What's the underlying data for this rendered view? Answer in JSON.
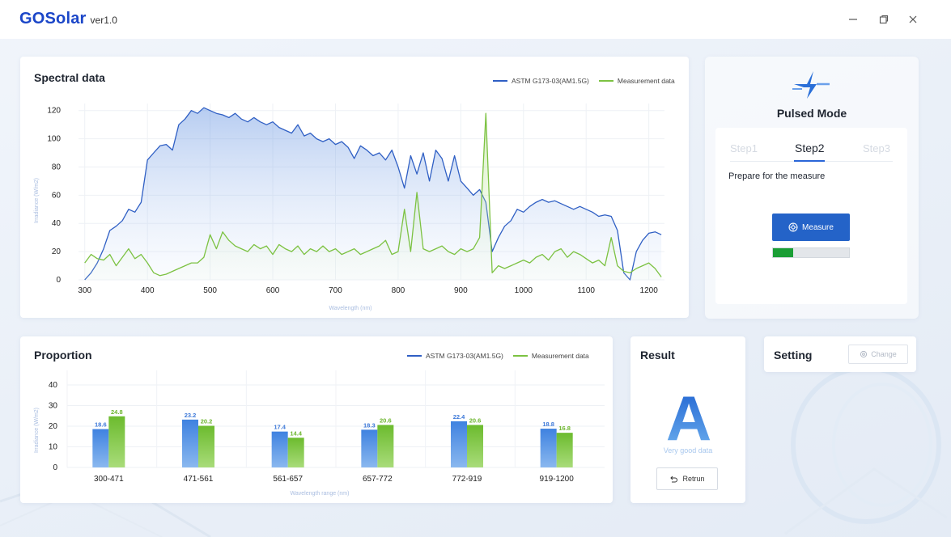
{
  "app": {
    "name": "GOSolar",
    "version": "ver1.0"
  },
  "window_controls": {
    "minimize": "—",
    "maximize": "⧉",
    "close": "✕"
  },
  "spectral": {
    "title": "Spectral data",
    "legend": [
      "ASTM G173-03(AM1.5G)",
      "Measurement data"
    ],
    "xlabel": "Wavelength (nm)",
    "ylabel": "Irradiance (W/m2)",
    "yticks": [
      "0",
      "20",
      "40",
      "60",
      "80",
      "100",
      "120"
    ],
    "xticks": [
      "300",
      "400",
      "500",
      "600",
      "700",
      "800",
      "900",
      "1000",
      "1100",
      "1200"
    ]
  },
  "proportion": {
    "title": "Proportion",
    "legend": [
      "ASTM G173-03(AM1.5G)",
      "Measurement data"
    ],
    "xlabel": "Wavelength range (nm)",
    "ylabel": "Irradiance (W/m2)",
    "yticks": [
      "0",
      "10",
      "20",
      "30",
      "40"
    ]
  },
  "mode": {
    "title": "Pulsed Mode",
    "steps": [
      "Step1",
      "Step2",
      "Step3"
    ],
    "active_step": 1,
    "instruction": "Prepare for the measure",
    "measure_label": "Measure",
    "progress": 0.27
  },
  "result": {
    "title": "Result",
    "grade": "A",
    "grade_text": "Very good data",
    "return_label": "Retrun"
  },
  "setting": {
    "title": "Setting",
    "change_label": "Change"
  },
  "colors": {
    "astm": "#2f5fc4",
    "measurement": "#7cc242",
    "accent": "#2463c8",
    "brand": "#1b46c8"
  },
  "chart_data": [
    {
      "type": "area",
      "title": "Spectral data",
      "xlabel": "Wavelength (nm)",
      "ylabel": "Irradiance (W/m2)",
      "xlim": [
        290,
        1225
      ],
      "ylim": [
        0,
        125
      ],
      "series": [
        {
          "name": "ASTM G173-03(AM1.5G)",
          "x": [
            300,
            310,
            320,
            330,
            340,
            350,
            360,
            370,
            380,
            390,
            400,
            410,
            420,
            430,
            440,
            450,
            460,
            470,
            480,
            490,
            500,
            510,
            520,
            530,
            540,
            550,
            560,
            570,
            580,
            590,
            600,
            610,
            620,
            630,
            640,
            650,
            660,
            670,
            680,
            690,
            700,
            710,
            720,
            730,
            740,
            750,
            760,
            770,
            780,
            790,
            800,
            810,
            820,
            830,
            840,
            850,
            860,
            870,
            880,
            890,
            900,
            910,
            920,
            930,
            940,
            950,
            960,
            970,
            980,
            990,
            1000,
            1010,
            1020,
            1030,
            1040,
            1050,
            1060,
            1070,
            1080,
            1090,
            1100,
            1110,
            1120,
            1130,
            1140,
            1150,
            1160,
            1170,
            1180,
            1190,
            1200,
            1210,
            1220
          ],
          "y": [
            0,
            5,
            12,
            22,
            35,
            38,
            42,
            50,
            48,
            55,
            85,
            90,
            95,
            96,
            92,
            110,
            114,
            120,
            118,
            122,
            120,
            118,
            117,
            115,
            118,
            114,
            112,
            115,
            112,
            110,
            112,
            108,
            106,
            104,
            110,
            102,
            104,
            100,
            98,
            100,
            96,
            98,
            94,
            86,
            95,
            92,
            88,
            90,
            85,
            92,
            80,
            65,
            88,
            75,
            90,
            70,
            92,
            86,
            70,
            88,
            70,
            65,
            60,
            64,
            55,
            20,
            30,
            38,
            42,
            50,
            48,
            52,
            55,
            57,
            55,
            56,
            54,
            52,
            50,
            52,
            50,
            48,
            45,
            46,
            45,
            35,
            5,
            0,
            20,
            28,
            33,
            34,
            32
          ]
        },
        {
          "name": "Measurement data",
          "x": [
            300,
            310,
            320,
            330,
            340,
            350,
            360,
            370,
            380,
            390,
            400,
            410,
            420,
            430,
            440,
            450,
            460,
            470,
            480,
            490,
            500,
            510,
            520,
            530,
            540,
            550,
            560,
            570,
            580,
            590,
            600,
            610,
            620,
            630,
            640,
            650,
            660,
            670,
            680,
            690,
            700,
            710,
            720,
            730,
            740,
            750,
            760,
            770,
            780,
            790,
            800,
            810,
            820,
            830,
            840,
            850,
            860,
            870,
            880,
            890,
            900,
            910,
            920,
            930,
            940,
            950,
            960,
            970,
            980,
            990,
            1000,
            1010,
            1020,
            1030,
            1040,
            1050,
            1060,
            1070,
            1080,
            1090,
            1100,
            1110,
            1120,
            1130,
            1140,
            1150,
            1160,
            1170,
            1180,
            1190,
            1200,
            1210,
            1220
          ],
          "y": [
            12,
            18,
            15,
            14,
            18,
            10,
            16,
            22,
            15,
            18,
            12,
            5,
            3,
            4,
            6,
            8,
            10,
            12,
            12,
            16,
            32,
            22,
            34,
            28,
            24,
            22,
            20,
            25,
            22,
            24,
            18,
            25,
            22,
            20,
            24,
            18,
            22,
            20,
            24,
            20,
            22,
            18,
            20,
            22,
            18,
            20,
            22,
            24,
            28,
            18,
            20,
            50,
            20,
            62,
            22,
            20,
            22,
            24,
            20,
            18,
            22,
            20,
            22,
            30,
            118,
            5,
            10,
            8,
            10,
            12,
            14,
            12,
            16,
            18,
            14,
            20,
            22,
            16,
            20,
            18,
            15,
            12,
            14,
            10,
            30,
            10,
            6,
            5,
            8,
            10,
            12,
            8,
            2
          ]
        }
      ]
    },
    {
      "type": "bar",
      "title": "Proportion",
      "xlabel": "Wavelength range (nm)",
      "ylabel": "Irradiance (W/m2)",
      "ylim": [
        0,
        40
      ],
      "categories": [
        "300-471",
        "471-561",
        "561-657",
        "657-772",
        "772-919",
        "919-1200"
      ],
      "series": [
        {
          "name": "ASTM G173-03(AM1.5G)",
          "values": [
            18.6,
            23.2,
            17.4,
            18.3,
            22.4,
            18.8
          ]
        },
        {
          "name": "Measurement data",
          "values": [
            24.8,
            20.2,
            14.4,
            20.6,
            20.6,
            16.8
          ]
        }
      ],
      "value_labels": {
        "ASTM G173-03(AM1.5G)": [
          "18.6",
          "23.2",
          "17.4",
          "18.3",
          "22.4",
          "18.8"
        ],
        "Measurement data": [
          "24.8",
          "20.2",
          "14.4",
          "20.6",
          "20.6",
          "16.8"
        ]
      }
    }
  ]
}
